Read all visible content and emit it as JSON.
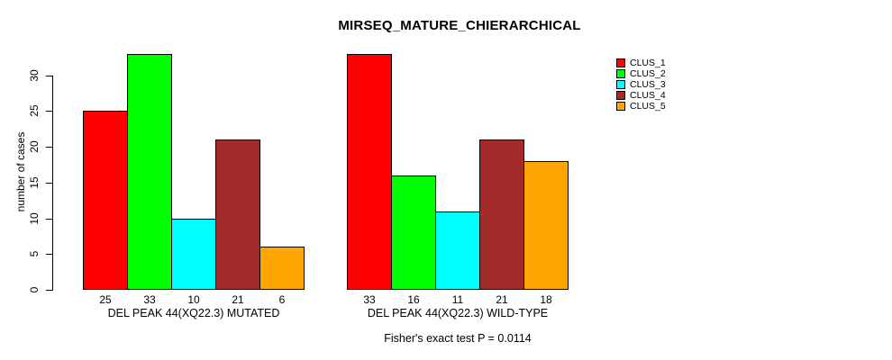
{
  "chart_data": {
    "type": "bar",
    "title": "MIRSEQ_MATURE_CHIERARCHICAL",
    "ylabel": "number of cases",
    "xlabel": "",
    "ylim": [
      0,
      33
    ],
    "yticks": [
      0,
      5,
      10,
      15,
      20,
      25,
      30
    ],
    "grid": false,
    "legend_position": "right",
    "series": [
      {
        "name": "CLUS_1",
        "color": "#FF0000"
      },
      {
        "name": "CLUS_2",
        "color": "#00FF00"
      },
      {
        "name": "CLUS_3",
        "color": "#00FFFF"
      },
      {
        "name": "CLUS_4",
        "color": "#A52A2A"
      },
      {
        "name": "CLUS_5",
        "color": "#FFA500"
      }
    ],
    "groups": [
      {
        "label": "DEL PEAK 44(XQ22.3) MUTATED",
        "values": [
          25,
          33,
          10,
          21,
          6
        ]
      },
      {
        "label": "DEL PEAK 44(XQ22.3) WILD-TYPE",
        "values": [
          33,
          16,
          11,
          21,
          18
        ]
      }
    ],
    "bar_value_labels_shown": true,
    "annotation": "Fisher's exact test P = 0.0114"
  }
}
